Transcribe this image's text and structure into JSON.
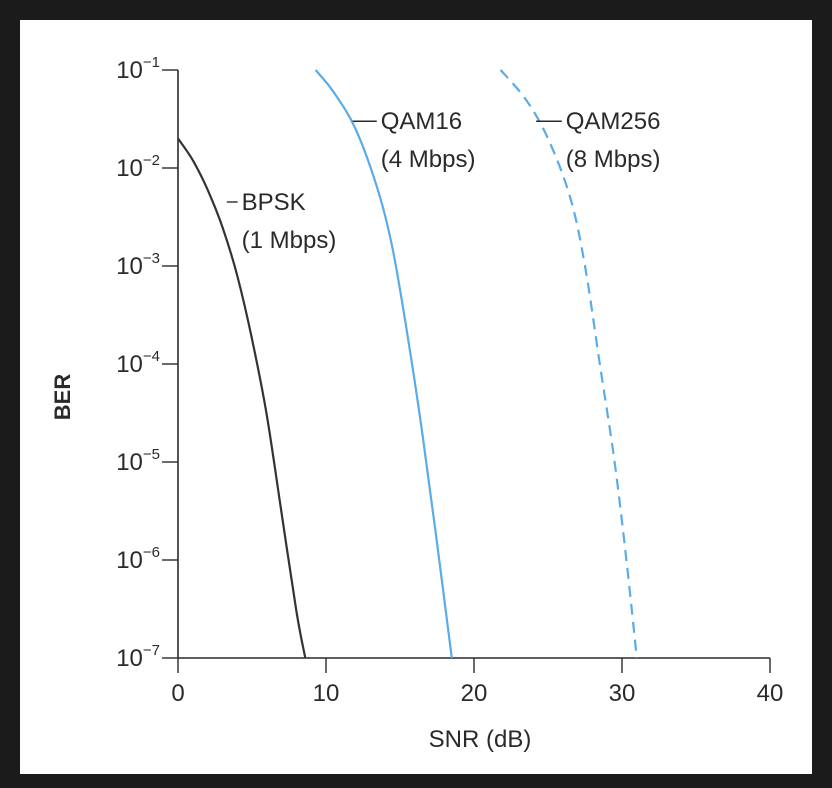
{
  "chart_data": {
    "type": "line",
    "xlabel": "SNR (dB)",
    "ylabel": "BER",
    "xlim": [
      0,
      40
    ],
    "ylim": [
      1e-07,
      0.1
    ],
    "y_scale": "log",
    "x_ticks": [
      "0",
      "10",
      "20",
      "30",
      "40"
    ],
    "y_ticks": [
      {
        "base": "10",
        "exp": "−1"
      },
      {
        "base": "10",
        "exp": "−2"
      },
      {
        "base": "10",
        "exp": "−3"
      },
      {
        "base": "10",
        "exp": "−4"
      },
      {
        "base": "10",
        "exp": "−5"
      },
      {
        "base": "10",
        "exp": "−6"
      },
      {
        "base": "10",
        "exp": "−7"
      }
    ],
    "grid": false,
    "legend": "none",
    "series": [
      {
        "name": "BPSK",
        "label_lines": [
          "BPSK",
          "(1 Mbps)"
        ],
        "color": "#333333",
        "dash": "solid",
        "x": [
          0,
          1,
          2,
          3,
          4,
          5,
          6,
          7,
          8,
          8.6
        ],
        "y": [
          0.02,
          0.012,
          0.006,
          0.0025,
          0.0008,
          0.00018,
          3e-05,
          3e-06,
          3e-07,
          1e-07
        ]
      },
      {
        "name": "QAM16",
        "label_lines": [
          "QAM16",
          "(4 Mbps)"
        ],
        "color": "#5aabe8",
        "dash": "solid",
        "x": [
          9.3,
          10.5,
          12,
          13.5,
          14.5,
          15.5,
          16.5,
          17.5,
          18.5
        ],
        "y": [
          0.1,
          0.06,
          0.025,
          0.006,
          0.0015,
          0.0002,
          2e-05,
          1.5e-06,
          1e-07
        ]
      },
      {
        "name": "QAM256",
        "label_lines": [
          "QAM256",
          "(8 Mbps)"
        ],
        "color": "#5aabe8",
        "dash": "dashed",
        "x": [
          21.8,
          23.5,
          25,
          26.5,
          27.5,
          28.5,
          29.5,
          30.3,
          31
        ],
        "y": [
          0.1,
          0.05,
          0.02,
          0.005,
          0.001,
          0.0001,
          1e-05,
          1e-06,
          1e-07
        ]
      }
    ],
    "annotations": [
      {
        "series": "BPSK",
        "x": 3.3,
        "y": 0.0045,
        "text_x": 4.3
      },
      {
        "series": "QAM16",
        "x": 11.8,
        "y": 0.03,
        "text_x": 13.7
      },
      {
        "series": "QAM256",
        "x": 24.2,
        "y": 0.03,
        "text_x": 26.2
      }
    ]
  }
}
